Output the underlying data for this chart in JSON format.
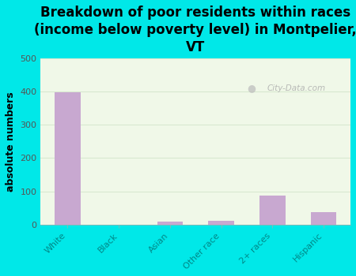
{
  "title": "Breakdown of poor residents within races\n(income below poverty level) in Montpelier,\nVT",
  "categories": [
    "White",
    "Black",
    "Asian",
    "Other race",
    "2+ races",
    "Hispanic"
  ],
  "values": [
    397,
    0,
    8,
    12,
    88,
    38
  ],
  "bar_color": "#c8a8d0",
  "ylabel": "absolute numbers",
  "ylim": [
    0,
    500
  ],
  "yticks": [
    0,
    100,
    200,
    300,
    400,
    500
  ],
  "background_color": "#00e8e8",
  "plot_bg_color": "#e8f5e0",
  "watermark": "City-Data.com",
  "title_fontsize": 12,
  "ylabel_fontsize": 9,
  "tick_fontsize": 8,
  "xtick_color": "#008888",
  "ytick_color": "#555555",
  "grid_color": "#d8e8d0"
}
